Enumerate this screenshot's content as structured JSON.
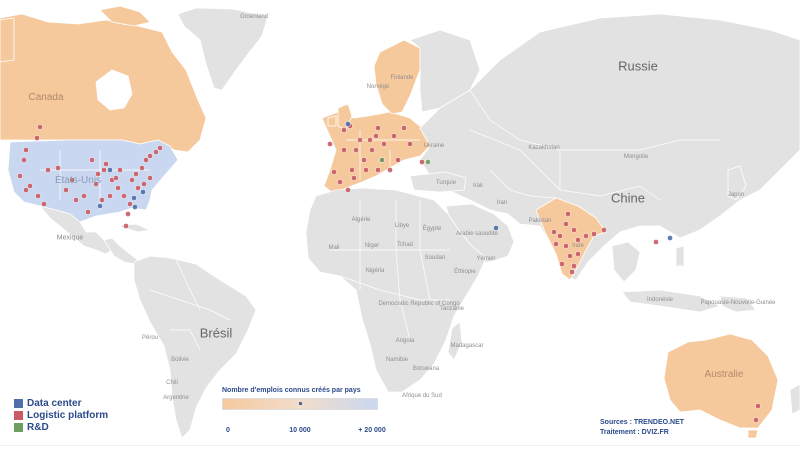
{
  "colors": {
    "land": "#e2e2e2",
    "border": "#ffffff",
    "orange": "#f6c99d",
    "blue": "#c9d8f0",
    "data_center": "#4f6fa8",
    "logistic_platform": "#c95b65",
    "rnd": "#6f9f5f"
  },
  "country_labels": [
    {
      "name": "Groenland",
      "size": "xs"
    },
    {
      "name": "Canada",
      "size": "md",
      "on": "orange"
    },
    {
      "name": "États-Unis",
      "size": "md",
      "on": "blue"
    },
    {
      "name": "Mexique",
      "size": "sm"
    },
    {
      "name": "Brésil",
      "size": "lg"
    },
    {
      "name": "Pérou",
      "size": "xs"
    },
    {
      "name": "Bolivie",
      "size": "xs"
    },
    {
      "name": "Chili",
      "size": "xs"
    },
    {
      "name": "Argentine",
      "size": "xs"
    },
    {
      "name": "Russie",
      "size": "lg"
    },
    {
      "name": "Finlande",
      "size": "xs"
    },
    {
      "name": "Norvège",
      "size": "xs"
    },
    {
      "name": "Ukraine",
      "size": "xs"
    },
    {
      "name": "Kazakhstan",
      "size": "xs"
    },
    {
      "name": "Mongolie",
      "size": "xs"
    },
    {
      "name": "Chine",
      "size": "lg"
    },
    {
      "name": "Japon",
      "size": "xs"
    },
    {
      "name": "Turquie",
      "size": "xs"
    },
    {
      "name": "Iran",
      "size": "xs"
    },
    {
      "name": "Irak",
      "size": "xs"
    },
    {
      "name": "Pakistan",
      "size": "xs"
    },
    {
      "name": "Inde",
      "size": "xs"
    },
    {
      "name": "Arabie saoudite",
      "size": "xs"
    },
    {
      "name": "Yémen",
      "size": "xs"
    },
    {
      "name": "Algérie",
      "size": "xs"
    },
    {
      "name": "Libye",
      "size": "xs"
    },
    {
      "name": "Égypte",
      "size": "xs"
    },
    {
      "name": "Mali",
      "size": "xs"
    },
    {
      "name": "Niger",
      "size": "xs"
    },
    {
      "name": "Tchad",
      "size": "xs"
    },
    {
      "name": "Soudan",
      "size": "xs"
    },
    {
      "name": "Nigéria",
      "size": "xs"
    },
    {
      "name": "Éthiopie",
      "size": "xs"
    },
    {
      "name": "Democratic Republic of Congo",
      "size": "xs"
    },
    {
      "name": "Tanzanie",
      "size": "xs"
    },
    {
      "name": "Angola",
      "size": "xs"
    },
    {
      "name": "Namibie",
      "size": "xs"
    },
    {
      "name": "Botswana",
      "size": "xs"
    },
    {
      "name": "Afrique du Sud",
      "size": "xs"
    },
    {
      "name": "Madagascar",
      "size": "xs"
    },
    {
      "name": "Indonésie",
      "size": "xs"
    },
    {
      "name": "Australie",
      "size": "md",
      "on": "orange"
    },
    {
      "name": "Papouasie-Nouvelle-Guinée",
      "size": "xs"
    }
  ],
  "legend": [
    {
      "label": "Data center",
      "color": "#4f6fa8"
    },
    {
      "label": "Logistic platform",
      "color": "#c95b65"
    },
    {
      "label": "R&D",
      "color": "#6f9f5f"
    }
  ],
  "color_scale": {
    "title": "Nombre d'emplois connus créés par pays",
    "ticks": [
      "0",
      "10 000",
      "+ 20 000"
    ]
  },
  "sources": {
    "line1": "Sources : TRENDEO.NET",
    "line2": "Traitement : DVIZ.FR"
  }
}
